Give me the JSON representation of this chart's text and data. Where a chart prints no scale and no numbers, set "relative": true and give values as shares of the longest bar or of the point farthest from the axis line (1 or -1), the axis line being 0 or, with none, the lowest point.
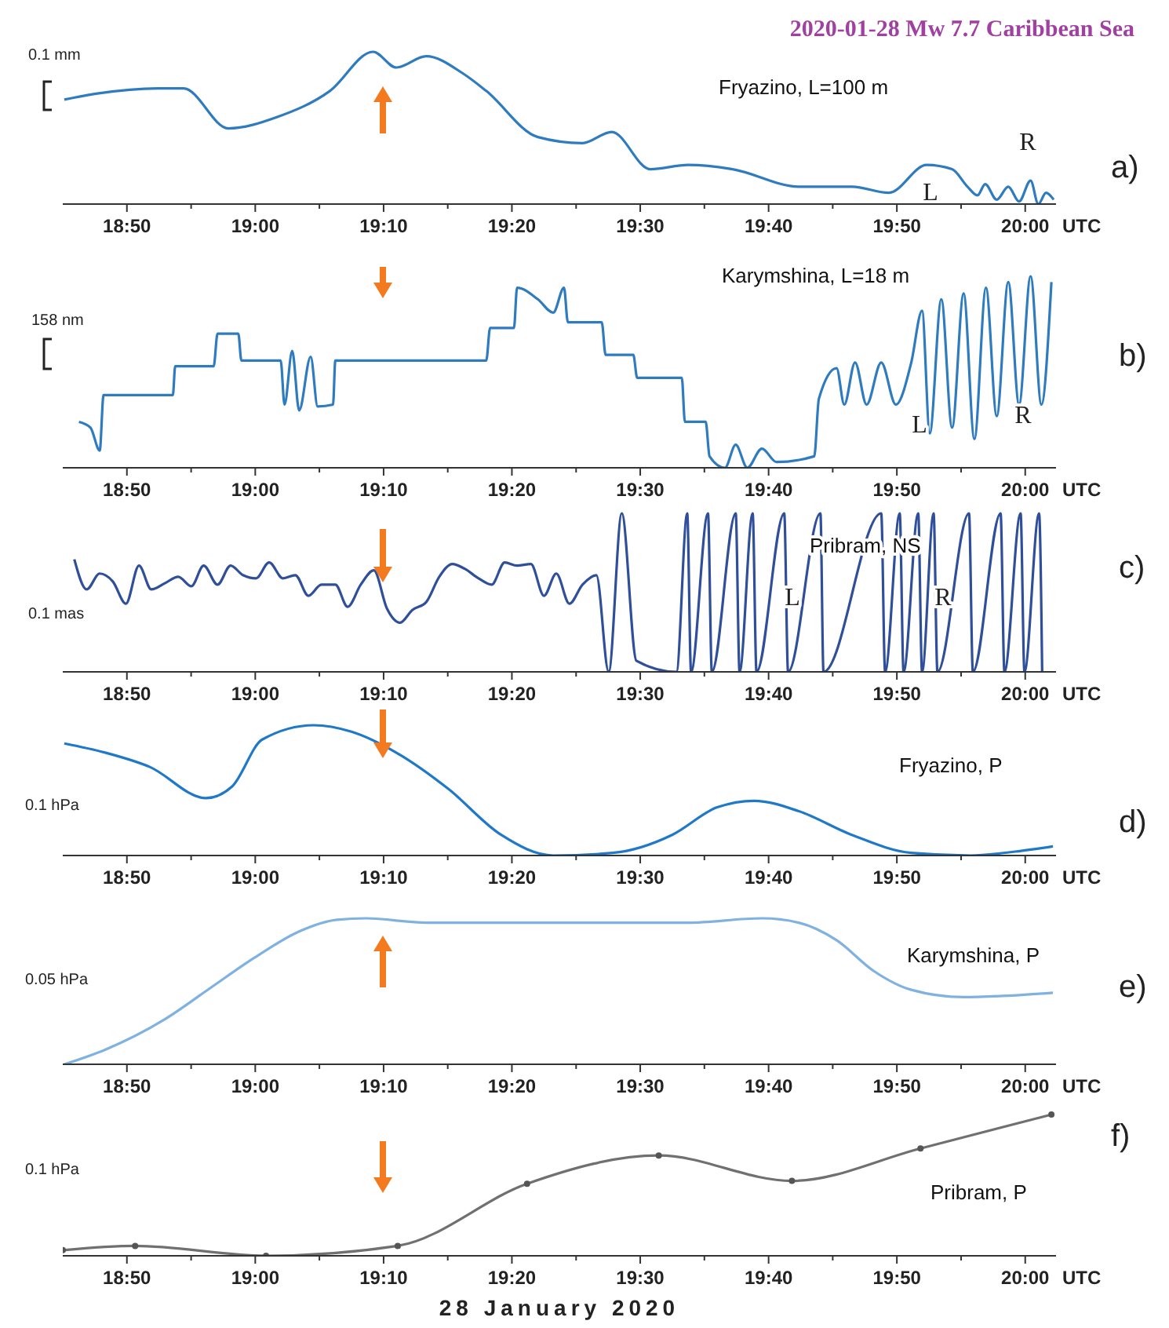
{
  "chart_data": [
    {
      "type": "line",
      "title": "2020-01-28  Mw 7.7  Caribbean Sea",
      "xlabel": "UTC",
      "relative": true,
      "color": "#2e7bbf",
      "x": [
        18.752,
        18.795,
        18.873,
        18.907,
        18.965,
        19.028,
        19.097,
        19.153,
        19.183,
        19.222,
        19.27,
        19.3,
        19.367,
        19.425,
        19.463,
        19.513,
        19.562,
        19.62,
        19.707,
        19.775,
        19.823,
        19.872,
        19.905,
        19.925,
        19.938,
        19.948,
        19.963,
        19.978,
        19.992,
        20.007,
        20.017,
        20.027,
        20.037
      ],
      "values": [
        0.686,
        0.726,
        0.76,
        0.76,
        0.497,
        0.571,
        0.743,
        1,
        0.897,
        0.971,
        0.857,
        0.743,
        0.44,
        0.4,
        0.474,
        0.229,
        0.257,
        0.229,
        0.114,
        0.114,
        0.074,
        0.257,
        0.229,
        0.114,
        0.057,
        0.131,
        0.029,
        0.114,
        0.017,
        0.154,
        0,
        0.074,
        0.029
      ],
      "xlim": [
        18.75,
        20.04
      ],
      "xticks": [
        {
          "value": 18.8333,
          "label": "18:50"
        },
        {
          "value": 18.9167,
          "label": null
        },
        {
          "value": 19,
          "label": "19:00"
        },
        {
          "value": 19.0833,
          "label": null
        },
        {
          "value": 19.1667,
          "label": "19:10"
        },
        {
          "value": 19.25,
          "label": null
        },
        {
          "value": 19.3333,
          "label": "19:20"
        },
        {
          "value": 19.4167,
          "label": null
        },
        {
          "value": 19.5,
          "label": "19:30"
        },
        {
          "value": 19.5833,
          "label": null
        },
        {
          "value": 19.6667,
          "label": "19:40"
        },
        {
          "value": 19.75,
          "label": null
        },
        {
          "value": 19.8333,
          "label": "19:50"
        },
        {
          "value": 19.9167,
          "label": null
        },
        {
          "value": 20,
          "label": "20:00"
        }
      ],
      "annotations": [
        "Fryazino,  L=100 m",
        "0.1 mm",
        "a)",
        "L",
        "R"
      ]
    },
    {
      "type": "line",
      "xlabel": "UTC",
      "relative": true,
      "color": "#2e7bbf",
      "x": [
        18.771,
        18.786,
        18.798,
        18.803,
        18.893,
        18.896,
        18.946,
        18.951,
        18.978,
        18.982,
        19.033,
        19.038,
        19.048,
        19.057,
        19.072,
        19.081,
        19.101,
        19.104,
        19.3,
        19.305,
        19.336,
        19.34,
        19.367,
        19.387,
        19.401,
        19.406,
        19.45,
        19.455,
        19.491,
        19.496,
        19.554,
        19.558,
        19.585,
        19.59,
        19.61,
        19.624,
        19.639,
        19.658,
        19.677,
        19.726,
        19.732,
        19.755,
        19.765,
        19.779,
        19.794,
        19.813,
        19.832,
        19.852,
        19.866,
        19.876,
        19.891,
        19.905,
        19.92,
        19.934,
        19.949,
        19.963,
        19.978,
        19.992,
        20.007,
        20.021,
        20.034
      ],
      "values": [
        0.24,
        0.21,
        0.09,
        0.38,
        0.38,
        0.53,
        0.53,
        0.7,
        0.7,
        0.56,
        0.56,
        0.33,
        0.61,
        0.3,
        0.58,
        0.32,
        0.33,
        0.56,
        0.56,
        0.73,
        0.73,
        0.94,
        0.88,
        0.81,
        0.94,
        0.76,
        0.76,
        0.59,
        0.59,
        0.47,
        0.47,
        0.24,
        0.24,
        0.06,
        0,
        0.12,
        0,
        0.1,
        0.03,
        0.06,
        0.36,
        0.52,
        0.33,
        0.55,
        0.33,
        0.55,
        0.33,
        0.55,
        0.82,
        0.18,
        0.88,
        0.21,
        0.91,
        0.15,
        0.94,
        0.27,
        0.97,
        0.33,
        1,
        0.33,
        0.97
      ],
      "xlim": [
        18.75,
        20.04
      ],
      "xticks": [
        {
          "value": 18.8333,
          "label": "18:50"
        },
        {
          "value": 18.9167,
          "label": null
        },
        {
          "value": 19,
          "label": "19:00"
        },
        {
          "value": 19.0833,
          "label": null
        },
        {
          "value": 19.1667,
          "label": "19:10"
        },
        {
          "value": 19.25,
          "label": null
        },
        {
          "value": 19.3333,
          "label": "19:20"
        },
        {
          "value": 19.4167,
          "label": null
        },
        {
          "value": 19.5,
          "label": "19:30"
        },
        {
          "value": 19.5833,
          "label": null
        },
        {
          "value": 19.6667,
          "label": "19:40"
        },
        {
          "value": 19.75,
          "label": null
        },
        {
          "value": 19.8333,
          "label": "19:50"
        },
        {
          "value": 19.9167,
          "label": null
        },
        {
          "value": 20,
          "label": "20:00"
        }
      ],
      "annotations": [
        "Karymshina, L=18 m",
        "158 nm",
        "b)",
        "L",
        "R"
      ]
    },
    {
      "type": "line",
      "xlabel": "UTC",
      "relative": true,
      "color": "#2f4f9a",
      "x": [
        18.765,
        18.781,
        18.798,
        18.815,
        18.832,
        18.849,
        18.865,
        18.883,
        18.9,
        18.917,
        18.933,
        18.951,
        18.968,
        18.984,
        19.001,
        19.018,
        19.036,
        19.052,
        19.069,
        19.086,
        19.104,
        19.12,
        19.137,
        19.154,
        19.171,
        19.188,
        19.204,
        19.222,
        19.239,
        19.256,
        19.272,
        19.29,
        19.307,
        19.324,
        19.34,
        19.358,
        19.375,
        19.391,
        19.408,
        19.425,
        19.443,
        19.459,
        19.476,
        19.495,
        19.547,
        19.561,
        19.566,
        19.588,
        19.593,
        19.624,
        19.629,
        19.646,
        19.651,
        19.687,
        19.692,
        19.734,
        19.738,
        19.813,
        19.818,
        19.837,
        19.842,
        19.861,
        19.866,
        19.881,
        19.886,
        19.927,
        19.932,
        19.968,
        19.973,
        19.994,
        19.999,
        20.018,
        20.022
      ],
      "values": [
        0.71,
        0.52,
        0.62,
        0.57,
        0.43,
        0.67,
        0.52,
        0.56,
        0.6,
        0.54,
        0.67,
        0.55,
        0.67,
        0.61,
        0.59,
        0.69,
        0.59,
        0.61,
        0.48,
        0.55,
        0.55,
        0.41,
        0.55,
        0.64,
        0.4,
        0.31,
        0.39,
        0.44,
        0.6,
        0.68,
        0.65,
        0.59,
        0.55,
        0.69,
        0.67,
        0.68,
        0.48,
        0.62,
        0.43,
        0.55,
        0.61,
        0,
        1,
        0.07,
        0,
        1,
        0,
        1,
        0,
        1,
        0,
        1,
        0,
        1,
        0,
        1,
        0,
        1,
        0,
        1,
        0,
        1,
        0,
        1,
        0,
        1,
        0,
        1,
        0,
        1,
        0,
        1,
        0
      ],
      "xlim": [
        18.75,
        20.04
      ],
      "xticks": [
        {
          "value": 18.8333,
          "label": "18:50"
        },
        {
          "value": 18.9167,
          "label": null
        },
        {
          "value": 19,
          "label": "19:00"
        },
        {
          "value": 19.0833,
          "label": null
        },
        {
          "value": 19.1667,
          "label": "19:10"
        },
        {
          "value": 19.25,
          "label": null
        },
        {
          "value": 19.3333,
          "label": "19:20"
        },
        {
          "value": 19.4167,
          "label": null
        },
        {
          "value": 19.5,
          "label": "19:30"
        },
        {
          "value": 19.5833,
          "label": null
        },
        {
          "value": 19.6667,
          "label": "19:40"
        },
        {
          "value": 19.75,
          "label": null
        },
        {
          "value": 19.8333,
          "label": "19:50"
        },
        {
          "value": 19.9167,
          "label": null
        },
        {
          "value": 20,
          "label": "20:00"
        }
      ],
      "annotations": [
        "Pribram,  NS",
        "0.1 mas",
        "c)",
        "L",
        "R"
      ]
    },
    {
      "type": "line",
      "xlabel": "UTC",
      "relative": true,
      "color": "#1f78c8",
      "x": [
        18.752,
        18.805,
        18.863,
        18.936,
        18.97,
        19.009,
        19.076,
        19.125,
        19.183,
        19.251,
        19.319,
        19.387,
        19.464,
        19.542,
        19.6,
        19.648,
        19.706,
        19.774,
        19.852,
        19.929,
        19.987,
        20.036
      ],
      "values": [
        0.86,
        0.79,
        0.68,
        0.44,
        0.53,
        0.89,
        1,
        0.95,
        0.79,
        0.51,
        0.16,
        0,
        0.02,
        0.16,
        0.37,
        0.42,
        0.34,
        0.16,
        0.02,
        0,
        0.03,
        0.07
      ],
      "xlim": [
        18.75,
        20.04
      ],
      "xticks": [
        {
          "value": 18.8333,
          "label": "18:50"
        },
        {
          "value": 18.9167,
          "label": null
        },
        {
          "value": 19,
          "label": "19:00"
        },
        {
          "value": 19.0833,
          "label": null
        },
        {
          "value": 19.1667,
          "label": "19:10"
        },
        {
          "value": 19.25,
          "label": null
        },
        {
          "value": 19.3333,
          "label": "19:20"
        },
        {
          "value": 19.4167,
          "label": null
        },
        {
          "value": 19.5,
          "label": "19:30"
        },
        {
          "value": 19.5833,
          "label": null
        },
        {
          "value": 19.6667,
          "label": "19:40"
        },
        {
          "value": 19.75,
          "label": null
        },
        {
          "value": 19.8333,
          "label": "19:50"
        },
        {
          "value": 19.9167,
          "label": null
        },
        {
          "value": 20,
          "label": "20:00"
        }
      ],
      "annotations": [
        "Fryazino,  P",
        "0.1 hPa",
        "d)"
      ]
    },
    {
      "type": "line",
      "xlabel": "UTC",
      "relative": true,
      "color": "#7fb2e0",
      "x": [
        18.752,
        18.805,
        18.883,
        18.941,
        18.999,
        19.057,
        19.106,
        19.144,
        19.222,
        19.367,
        19.561,
        19.658,
        19.706,
        19.755,
        19.803,
        19.852,
        19.92,
        19.978,
        20.036
      ],
      "values": [
        0,
        0.1,
        0.31,
        0.52,
        0.73,
        0.91,
        0.99,
        1,
        0.97,
        0.97,
        0.97,
        1,
        0.97,
        0.85,
        0.64,
        0.51,
        0.46,
        0.47,
        0.49
      ],
      "xlim": [
        18.75,
        20.04
      ],
      "xticks": [
        {
          "value": 18.8333,
          "label": "18:50"
        },
        {
          "value": 18.9167,
          "label": null
        },
        {
          "value": 19,
          "label": "19:00"
        },
        {
          "value": 19.0833,
          "label": null
        },
        {
          "value": 19.1667,
          "label": "19:10"
        },
        {
          "value": 19.25,
          "label": null
        },
        {
          "value": 19.3333,
          "label": "19:20"
        },
        {
          "value": 19.4167,
          "label": null
        },
        {
          "value": 19.5,
          "label": "19:30"
        },
        {
          "value": 19.5833,
          "label": null
        },
        {
          "value": 19.6667,
          "label": "19:40"
        },
        {
          "value": 19.75,
          "label": null
        },
        {
          "value": 19.8333,
          "label": "19:50"
        },
        {
          "value": 19.9167,
          "label": null
        },
        {
          "value": 20,
          "label": "20:00"
        }
      ],
      "annotations": [
        "Karymshina,  P",
        "0.05 hPa",
        "e)"
      ]
    },
    {
      "type": "line",
      "xlabel": "UTC",
      "relative": true,
      "color": "#707070",
      "marker": "circle",
      "x": [
        18.75,
        18.844,
        19.014,
        19.185,
        19.353,
        19.524,
        19.697,
        19.864,
        20.034
      ],
      "values": [
        0.04,
        0.07,
        0,
        0.07,
        0.51,
        0.71,
        0.53,
        0.76,
        1
      ],
      "xlim": [
        18.75,
        20.04
      ],
      "xticks": [
        {
          "value": 18.8333,
          "label": "18:50"
        },
        {
          "value": 18.9167,
          "label": null
        },
        {
          "value": 19,
          "label": "19:00"
        },
        {
          "value": 19.0833,
          "label": null
        },
        {
          "value": 19.1667,
          "label": "19:10"
        },
        {
          "value": 19.25,
          "label": null
        },
        {
          "value": 19.3333,
          "label": "19:20"
        },
        {
          "value": 19.4167,
          "label": null
        },
        {
          "value": 19.5,
          "label": "19:30"
        },
        {
          "value": 19.5833,
          "label": null
        },
        {
          "value": 19.6667,
          "label": "19:40"
        },
        {
          "value": 19.75,
          "label": null
        },
        {
          "value": 19.8333,
          "label": "19:50"
        },
        {
          "value": 19.9167,
          "label": null
        },
        {
          "value": 20,
          "label": "20:00"
        }
      ],
      "annotations": [
        "Pribram,  P",
        "0.1 hPa",
        "f)",
        "28 January 2020"
      ]
    }
  ]
}
